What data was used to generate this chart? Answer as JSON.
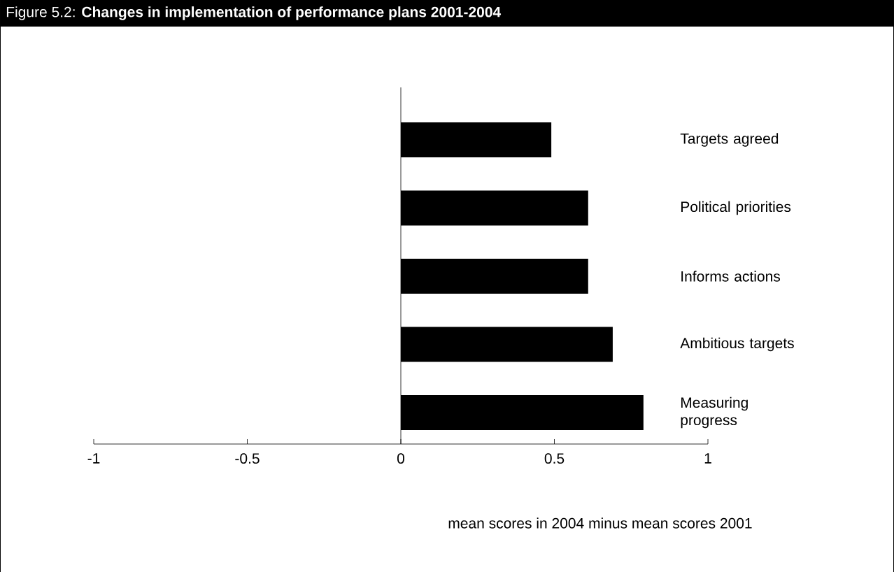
{
  "chart_data": {
    "type": "bar",
    "orientation": "horizontal",
    "title": "Figure 5.2: **Changes in implementation of performance plans 2001-2004**",
    "categories": [
      "Targets agreed",
      "Political priorities",
      "Informs actions",
      "Ambitious targets",
      "Measuring progress"
    ],
    "values": [
      0.49,
      0.61,
      0.61,
      0.69,
      0.79
    ],
    "color": "#000000",
    "xlim": [
      -1,
      1
    ],
    "xticks": [
      -1,
      -0.5,
      0,
      0.5,
      1
    ],
    "xlabel": "mean scores in 2004 minus mean scores 2001"
  }
}
